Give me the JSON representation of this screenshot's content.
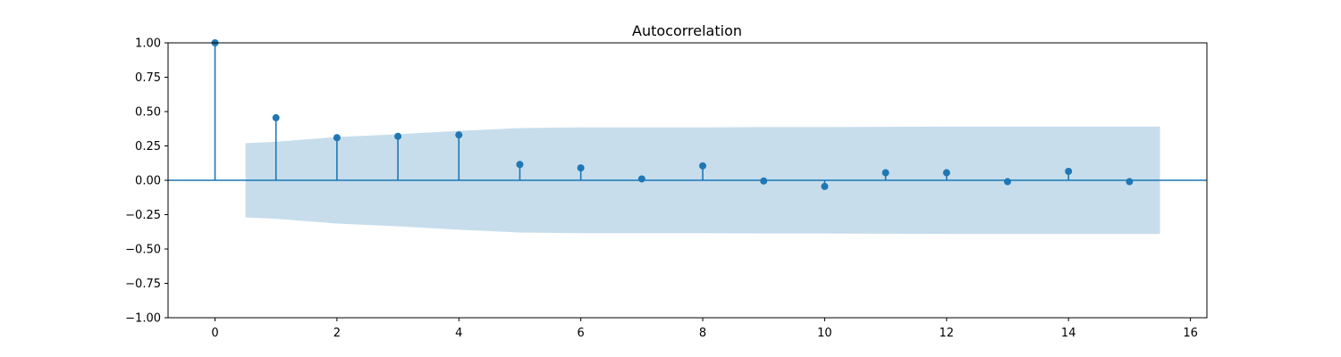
{
  "chart_data": {
    "type": "stem",
    "title": "Autocorrelation",
    "xlabel": "",
    "ylabel": "",
    "xlim": [
      -0.77,
      16.27
    ],
    "ylim": [
      -1.0,
      1.0
    ],
    "x_ticks": [
      0,
      2,
      4,
      6,
      8,
      10,
      12,
      14,
      16
    ],
    "x_tick_labels": [
      "0",
      "2",
      "4",
      "6",
      "8",
      "10",
      "12",
      "14",
      "16"
    ],
    "y_ticks": [
      1.0,
      0.75,
      0.5,
      0.25,
      0.0,
      -0.25,
      -0.5,
      -0.75,
      -1.0
    ],
    "y_tick_labels": [
      "1.00",
      "0.75",
      "0.50",
      "0.25",
      "0.00",
      "−0.25",
      "−0.50",
      "−0.75",
      "−1.00"
    ],
    "grid": false,
    "lags": [
      0,
      1,
      2,
      3,
      4,
      5,
      6,
      7,
      8,
      9,
      10,
      11,
      12,
      13,
      14,
      15
    ],
    "values": [
      1.0,
      0.455,
      0.31,
      0.32,
      0.33,
      0.115,
      0.09,
      0.01,
      0.105,
      -0.005,
      -0.045,
      0.055,
      0.055,
      -0.01,
      0.065,
      -0.01
    ],
    "confidence_band": {
      "x": [
        0.5,
        1,
        2,
        3,
        4,
        5,
        6,
        7,
        8,
        9,
        10,
        11,
        12,
        13,
        14,
        15,
        15.5
      ],
      "upper": [
        0.27,
        0.28,
        0.315,
        0.335,
        0.36,
        0.38,
        0.385,
        0.385,
        0.385,
        0.387,
        0.387,
        0.389,
        0.39,
        0.39,
        0.39,
        0.39,
        0.39
      ],
      "lower": [
        -0.27,
        -0.28,
        -0.315,
        -0.335,
        -0.36,
        -0.38,
        -0.385,
        -0.385,
        -0.385,
        -0.387,
        -0.387,
        -0.389,
        -0.39,
        -0.39,
        -0.39,
        -0.39,
        -0.39
      ]
    },
    "colors": {
      "stem": "#1f77b4",
      "band": "#1f77b4"
    }
  }
}
